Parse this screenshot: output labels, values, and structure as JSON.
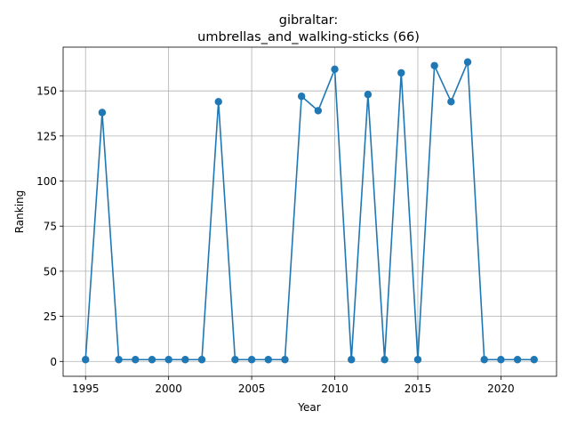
{
  "chart_data": {
    "type": "line",
    "title_line1": "gibraltar:",
    "title_line2": "umbrellas_and_walking-sticks (66)",
    "xlabel": "Year",
    "ylabel": "Ranking",
    "xlim": [
      1993.65,
      2023.35
    ],
    "ylim": [
      -8.25,
      174.25
    ],
    "xticks": [
      1995,
      2000,
      2005,
      2010,
      2015,
      2020
    ],
    "yticks": [
      0,
      25,
      50,
      75,
      100,
      125,
      150
    ],
    "grid": true,
    "color": "#1f77b4",
    "series": [
      {
        "x": [
          1995,
          1996,
          1997,
          1998,
          1999,
          2000,
          2001,
          2002,
          2003,
          2004,
          2005,
          2006,
          2007,
          2008,
          2009,
          2010,
          2011,
          2012,
          2013,
          2014,
          2015,
          2016,
          2017,
          2018,
          2019,
          2020,
          2021,
          2022
        ],
        "y": [
          1,
          138,
          1,
          1,
          1,
          1,
          1,
          1,
          144,
          1,
          1,
          1,
          1,
          147,
          139,
          162,
          1,
          148,
          1,
          160,
          1,
          164,
          144,
          166,
          1,
          1,
          1,
          1
        ]
      }
    ]
  }
}
